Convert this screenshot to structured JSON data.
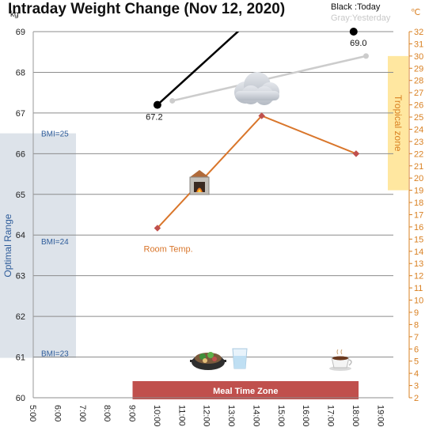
{
  "chart_data": {
    "type": "line",
    "title": "Intraday Weight Change (Nov 12, 2020)",
    "legend": [
      {
        "label": "Black :Today",
        "color": "#000000"
      },
      {
        "label": "Gray:Yesterday",
        "color": "#cccccc"
      }
    ],
    "y_left": {
      "unit": "kg",
      "range": [
        60,
        69
      ],
      "ticks": [
        "60",
        "61",
        "62",
        "63",
        "64",
        "65",
        "66",
        "67",
        "68",
        "69"
      ]
    },
    "y_right": {
      "unit": "℃",
      "range": [
        2,
        32
      ],
      "ticks": [
        "2",
        "3",
        "4",
        "5",
        "6",
        "7",
        "8",
        "9",
        "10",
        "11",
        "12",
        "13",
        "14",
        "15",
        "16",
        "17",
        "18",
        "19",
        "20",
        "21",
        "22",
        "23",
        "24",
        "25",
        "26",
        "27",
        "28",
        "29",
        "30",
        "31",
        "32"
      ]
    },
    "x_axis": {
      "ticks": [
        "5:00",
        "6:00",
        "7:00",
        "8:00",
        "9:00",
        "10:00",
        "11:00",
        "12:00",
        "13:00",
        "14:00",
        "15:00",
        "16:00",
        "17:00",
        "18:00",
        "19:00"
      ]
    },
    "series": [
      {
        "name": "Today",
        "color": "#000000",
        "axis": "left",
        "points": [
          {
            "x": 10.0,
            "y": 67.2
          },
          {
            "x": 13.6,
            "y": 69.2
          },
          {
            "x": 17.9,
            "y": 69.0
          }
        ],
        "data_labels": [
          "67.2",
          "69.0"
        ],
        "segments": [
          [
            0,
            1
          ]
        ]
      },
      {
        "name": "Yesterday",
        "color": "#cccccc",
        "axis": "left",
        "points": [
          {
            "x": 10.6,
            "y": 67.3
          },
          {
            "x": 18.4,
            "y": 68.4
          }
        ]
      },
      {
        "name": "Room Temp.",
        "color": "#d9762b",
        "axis": "right",
        "points": [
          {
            "x": 10.0,
            "y": 15.9
          },
          {
            "x": 14.2,
            "y": 25.1
          },
          {
            "x": 18.0,
            "y": 22.0
          }
        ]
      }
    ],
    "bands": [
      {
        "label": "Optimal Range",
        "y_from": 60.98,
        "y_to": 66.5,
        "color": "#dde3ea"
      },
      {
        "label": "Tropical zone",
        "axis": "right",
        "y_from": 19.0,
        "y_to": 30.0,
        "color": "#ffe7a0"
      },
      {
        "label": "Meal Time Zone",
        "x_from": 9.0,
        "x_to": 18.1,
        "color": "#c0504d"
      }
    ],
    "bmi_labels": [
      {
        "label": "BMI=25",
        "y": 66.5
      },
      {
        "label": "BMI=24",
        "y": 63.85
      },
      {
        "label": "BMI=23",
        "y": 61.1
      }
    ],
    "annotations": [
      {
        "label": "Room Temp.",
        "x": 10.5,
        "y": 14.2,
        "axis": "right"
      }
    ],
    "icons": [
      "cloud-icon",
      "fireplace-icon",
      "hotpot-icon",
      "water-glass-icon",
      "coffee-cup-icon"
    ],
    "grid": true
  }
}
